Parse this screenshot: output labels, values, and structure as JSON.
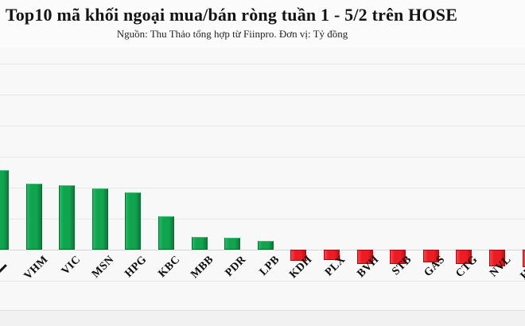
{
  "header": {
    "title": "Top10 mã khối ngoại mua/bán ròng tuần 1 - 5/2 trên HOSE",
    "subtitle": "Nguồn: Thu Thảo tổng hợp từ Fiinpro. Đơn vị: Tỷ đồng"
  },
  "chart_data": {
    "type": "bar",
    "title": "Top10 mã khối ngoại mua/bán ròng tuần 1 - 5/2 trên HOSE",
    "subtitle": "Nguồn: Thu Thảo tổng hợp từ Fiinpro. Đơn vị: Tỷ đồng",
    "unit": "Tỷ đồng",
    "categories": [
      "",
      "VHM",
      "VIC",
      "MSN",
      "HPG",
      "KBC",
      "MBB",
      "PDR",
      "LPB",
      "KDH",
      "PLX",
      "BVH",
      "STB",
      "GAS",
      "CTG",
      "NVL",
      "HCM"
    ],
    "values": [
      2.56,
      2.13,
      2.08,
      1.97,
      1.85,
      1.08,
      0.41,
      0.38,
      0.28,
      -0.36,
      -0.33,
      -0.46,
      -0.46,
      -0.41,
      -0.46,
      -0.54,
      -0.56
    ],
    "value_scale_note": "y-axis tick labels not visible; values estimated in gridline-spacing units, unit per subtitle: Tỷ đồng",
    "positive_color": "#10a44f",
    "negative_color": "#ec1c24",
    "grid": true,
    "legend": false,
    "xlabel": "",
    "ylabel": "",
    "cropped": {
      "left_bar_cut": true,
      "right_bar_cut": true
    }
  }
}
